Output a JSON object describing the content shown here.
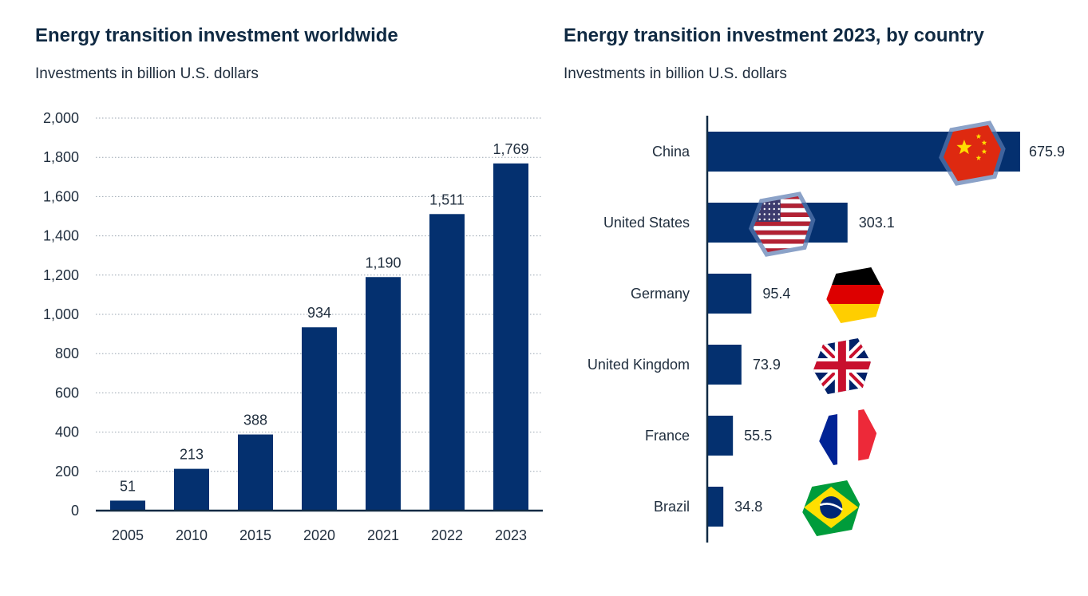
{
  "chart_data": [
    {
      "type": "bar",
      "title": "Energy transition investment worldwide",
      "subtitle": "Investments in billion U.S. dollars",
      "categories": [
        "2005",
        "2010",
        "2015",
        "2020",
        "2021",
        "2022",
        "2023"
      ],
      "values": [
        51,
        213,
        388,
        934,
        1190,
        1511,
        1769
      ],
      "value_labels": [
        "51",
        "213",
        "388",
        "934",
        "1,190",
        "1,511",
        "1,769"
      ],
      "ylim": [
        0,
        2000
      ],
      "yticks": [
        0,
        200,
        400,
        600,
        800,
        1000,
        1200,
        1400,
        1600,
        1800,
        2000
      ],
      "ytick_labels": [
        "0",
        "200",
        "400",
        "600",
        "800",
        "1,000",
        "1,200",
        "1,400",
        "1,600",
        "1,800",
        "2,000"
      ],
      "grid": true,
      "color": "#04306f"
    },
    {
      "type": "bar",
      "orientation": "horizontal",
      "title": "Energy transition investment 2023, by country",
      "subtitle": "Investments in billion U.S. dollars",
      "categories": [
        "China",
        "United States",
        "Germany",
        "United Kingdom",
        "France",
        "Brazil"
      ],
      "values": [
        675.9,
        303.1,
        95.4,
        73.9,
        55.5,
        34.8
      ],
      "value_labels": [
        "675.9",
        "303.1",
        "95.4",
        "73.9",
        "55.5",
        "34.8"
      ],
      "flag_icons": [
        "china-flag-icon",
        "usa-flag-icon",
        "germany-flag-icon",
        "uk-flag-icon",
        "france-flag-icon",
        "brazil-flag-icon"
      ],
      "xlim": [
        0,
        676
      ],
      "color": "#04306f"
    }
  ]
}
